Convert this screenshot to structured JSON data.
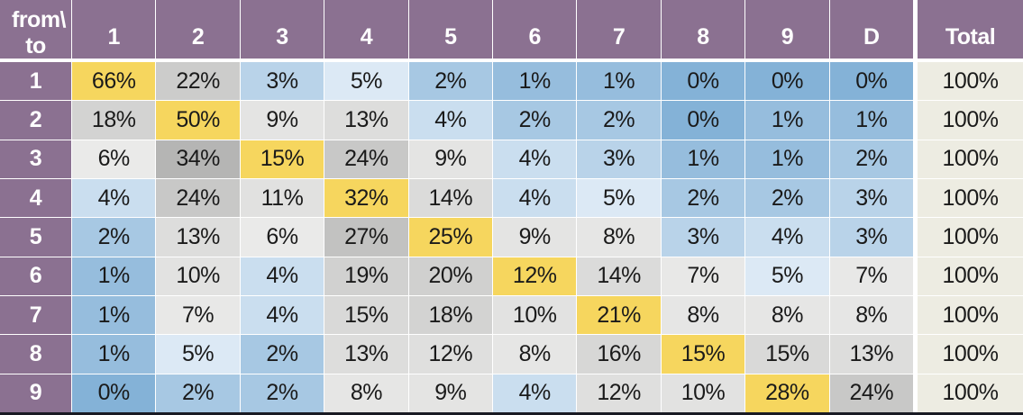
{
  "matrix": {
    "corner": {
      "line1": "from\\",
      "line2": "to"
    },
    "column_headers": [
      "1",
      "2",
      "3",
      "4",
      "5",
      "6",
      "7",
      "8",
      "9",
      "D"
    ],
    "total_header": "Total",
    "row_headers": [
      "1",
      "2",
      "3",
      "4",
      "5",
      "6",
      "7",
      "8",
      "9"
    ],
    "cell_unit": "%",
    "rows": [
      [
        66,
        22,
        3,
        5,
        2,
        1,
        1,
        0,
        0,
        0
      ],
      [
        18,
        50,
        9,
        13,
        4,
        2,
        2,
        0,
        1,
        1
      ],
      [
        6,
        34,
        15,
        24,
        9,
        4,
        3,
        1,
        1,
        2
      ],
      [
        4,
        24,
        11,
        32,
        14,
        4,
        5,
        2,
        2,
        3
      ],
      [
        2,
        13,
        6,
        27,
        25,
        9,
        8,
        3,
        4,
        3
      ],
      [
        1,
        10,
        4,
        19,
        20,
        12,
        14,
        7,
        5,
        7
      ],
      [
        1,
        7,
        4,
        15,
        18,
        10,
        21,
        8,
        8,
        8
      ],
      [
        1,
        5,
        2,
        13,
        12,
        8,
        16,
        15,
        15,
        13
      ],
      [
        0,
        2,
        2,
        8,
        9,
        4,
        12,
        10,
        28,
        24
      ]
    ],
    "totals": [
      "100%",
      "100%",
      "100%",
      "100%",
      "100%",
      "100%",
      "100%",
      "100%",
      "100%"
    ]
  },
  "colors": {
    "header_bg": "#8b7191",
    "header_text": "#ffffff",
    "diagonal_bg": "#f6d65e",
    "total_bg": "#edece2",
    "bottom_border": "#191a23",
    "blue_low": "#84b2d7",
    "blue_high": "#dce9f5",
    "gray_low": "#eaeae9",
    "gray_high": "#b5b5b4"
  },
  "chart_data": {
    "type": "heatmap",
    "title": "",
    "corner_label": "from\\to",
    "x_labels": [
      "1",
      "2",
      "3",
      "4",
      "5",
      "6",
      "7",
      "8",
      "9",
      "D"
    ],
    "y_labels": [
      "1",
      "2",
      "3",
      "4",
      "5",
      "6",
      "7",
      "8",
      "9"
    ],
    "values_percent": [
      [
        66,
        22,
        3,
        5,
        2,
        1,
        1,
        0,
        0,
        0
      ],
      [
        18,
        50,
        9,
        13,
        4,
        2,
        2,
        0,
        1,
        1
      ],
      [
        6,
        34,
        15,
        24,
        9,
        4,
        3,
        1,
        1,
        2
      ],
      [
        4,
        24,
        11,
        32,
        14,
        4,
        5,
        2,
        2,
        3
      ],
      [
        2,
        13,
        6,
        27,
        25,
        9,
        8,
        3,
        4,
        3
      ],
      [
        1,
        10,
        4,
        19,
        20,
        12,
        14,
        7,
        5,
        7
      ],
      [
        1,
        7,
        4,
        15,
        18,
        10,
        21,
        8,
        8,
        8
      ],
      [
        1,
        5,
        2,
        13,
        12,
        8,
        16,
        15,
        15,
        13
      ],
      [
        0,
        2,
        2,
        8,
        9,
        4,
        12,
        10,
        28,
        24
      ]
    ],
    "totals_percent": [
      100,
      100,
      100,
      100,
      100,
      100,
      100,
      100,
      100
    ],
    "legend": "diagonal cells highlighted yellow; low % shaded blue, high % shaded gray"
  }
}
